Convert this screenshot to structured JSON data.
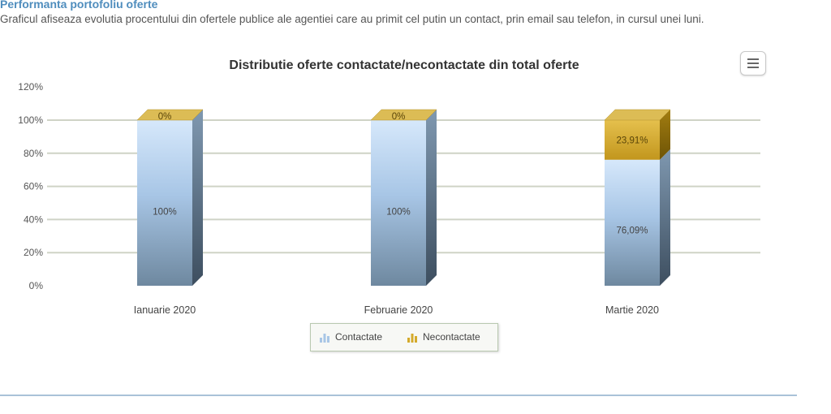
{
  "header": {
    "title": "Performanta portofoliu oferte",
    "description": "Graficul afiseaza evolutia procentului din ofertele publice ale agentiei care au primit cel putin un contact, prin email sau telefon, in cursul unei luni."
  },
  "chart_data": {
    "type": "bar",
    "stacked": true,
    "title": "Distributie oferte contactate/necontactate din total oferte",
    "categories": [
      "Ianuarie 2020",
      "Februarie 2020",
      "Martie 2020"
    ],
    "series": [
      {
        "name": "Contactate",
        "values": [
          100,
          100,
          76.09
        ],
        "labels": [
          "100%",
          "100%",
          "76,09%"
        ],
        "color": "#a8c6e6"
      },
      {
        "name": "Necontactate",
        "values": [
          0,
          0,
          23.91
        ],
        "labels": [
          "0%",
          "0%",
          "23,91%"
        ],
        "color": "#d4aa2b"
      }
    ],
    "ylim": [
      0,
      120
    ],
    "yticks": [
      "0%",
      "20%",
      "40%",
      "60%",
      "80%",
      "100%",
      "120%"
    ],
    "grid": true,
    "legend": "bottom"
  },
  "menu": {
    "icon": "hamburger-icon"
  },
  "legend": {
    "icons": {
      "contactate": "bar-chart-icon",
      "necontactate": "bar-chart-icon"
    }
  }
}
